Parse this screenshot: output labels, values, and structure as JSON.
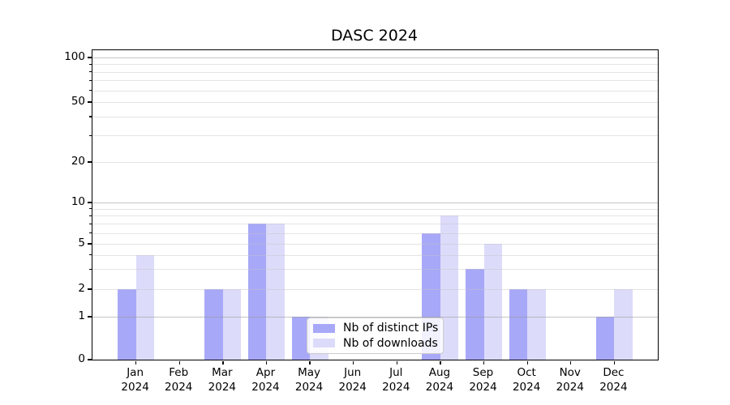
{
  "title": "DASC 2024",
  "chart_data": {
    "type": "bar",
    "title": "DASC 2024",
    "categories": [
      "Jan",
      "Feb",
      "Mar",
      "Apr",
      "May",
      "Jun",
      "Jul",
      "Aug",
      "Sep",
      "Oct",
      "Nov",
      "Dec"
    ],
    "year": "2024",
    "series": [
      {
        "name": "Nb of distinct IPs",
        "color": "#a8a8f8",
        "values": [
          2,
          0,
          2,
          7,
          1,
          0,
          0,
          6,
          3,
          2,
          0,
          1
        ]
      },
      {
        "name": "Nb of downloads",
        "color": "#dcdbfa",
        "values": [
          4,
          0,
          2,
          7,
          1,
          0,
          0,
          8,
          5,
          2,
          0,
          2
        ]
      }
    ],
    "xlabel": "",
    "ylabel": "",
    "yscale": "symlog",
    "ylim": [
      0,
      112
    ],
    "yticks": [
      0,
      1,
      2,
      5,
      10,
      20,
      50,
      100
    ],
    "ytick_labels": [
      "0",
      "1",
      "2",
      "5",
      "10",
      "20",
      "50",
      "100"
    ],
    "y_major_grid": [
      1,
      10,
      100
    ],
    "y_minor_grid": [
      2,
      3,
      4,
      5,
      6,
      7,
      8,
      9,
      20,
      30,
      40,
      50,
      60,
      70,
      80,
      90
    ],
    "grid": true,
    "legend_position": "lower center",
    "colors": {
      "axis": "#000000",
      "major_grid": "#b0b0b0",
      "minor_grid": "#d9d9d9",
      "background": "#ffffff"
    }
  }
}
